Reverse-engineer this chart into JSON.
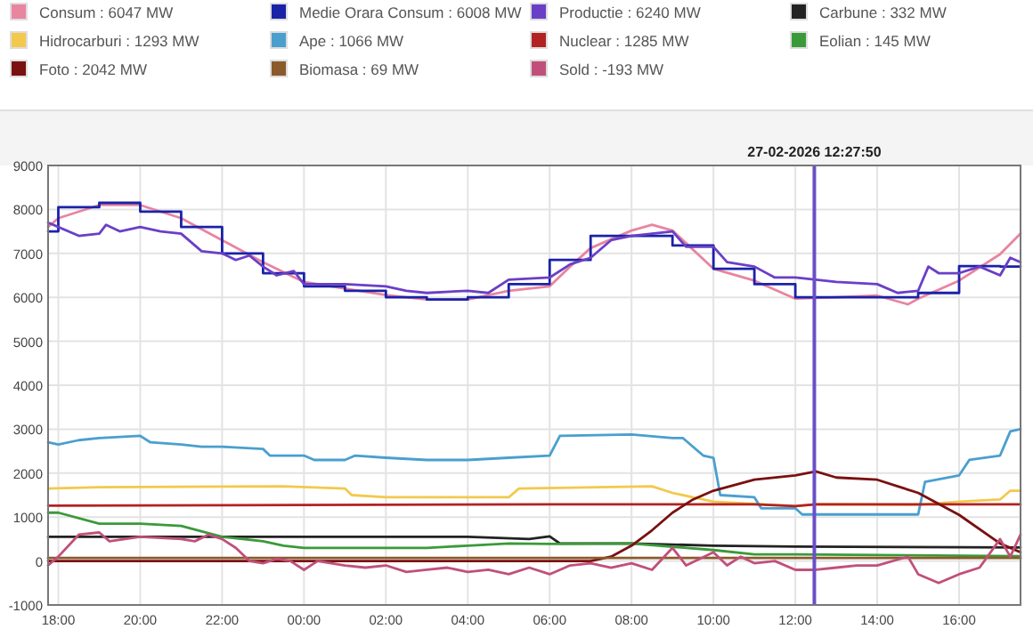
{
  "chart_data": {
    "type": "line",
    "legend": "top",
    "grid": true,
    "xlim": [
      "2026-02-26T17:45",
      "2026-02-27T17:30"
    ],
    "xticks": [
      {
        "value": "2026-02-26T18:00",
        "label": "18:00"
      },
      {
        "value": "2026-02-26T20:00",
        "label": "20:00"
      },
      {
        "value": "2026-02-26T22:00",
        "label": "22:00"
      },
      {
        "value": "2026-02-27T00:00",
        "label": "00:00"
      },
      {
        "value": "2026-02-27T02:00",
        "label": "02:00"
      },
      {
        "value": "2026-02-27T04:00",
        "label": "04:00"
      },
      {
        "value": "2026-02-27T06:00",
        "label": "06:00"
      },
      {
        "value": "2026-02-27T08:00",
        "label": "08:00"
      },
      {
        "value": "2026-02-27T10:00",
        "label": "10:00"
      },
      {
        "value": "2026-02-27T12:00",
        "label": "12:00"
      },
      {
        "value": "2026-02-27T14:00",
        "label": "14:00"
      },
      {
        "value": "2026-02-27T16:00",
        "label": "16:00"
      }
    ],
    "ylim": [
      -1000,
      9000
    ],
    "yticks": [
      -1000,
      0,
      1000,
      2000,
      3000,
      4000,
      5000,
      6000,
      7000,
      8000,
      9000
    ],
    "ref_lines": [
      {
        "axis": "x",
        "value": "2026-02-27T12:27:50",
        "label": "27-02-2026 12:27:50",
        "color": "#6a4fc7"
      }
    ],
    "series": [
      {
        "name": "Consum : 6047 MW",
        "color": "#e8859f",
        "x": [
          "2026-02-26T17:45",
          "2026-02-26T18:00",
          "2026-02-26T19:00",
          "2026-02-26T20:00",
          "2026-02-26T21:00",
          "2026-02-26T22:00",
          "2026-02-26T23:00",
          "2026-02-27T00:00",
          "2026-02-27T01:00",
          "2026-02-27T02:00",
          "2026-02-27T03:00",
          "2026-02-27T04:00",
          "2026-02-27T05:00",
          "2026-02-27T06:00",
          "2026-02-27T06:30",
          "2026-02-27T07:00",
          "2026-02-27T08:00",
          "2026-02-27T08:30",
          "2026-02-27T09:00",
          "2026-02-27T10:00",
          "2026-02-27T11:00",
          "2026-02-27T12:00",
          "2026-02-27T13:00",
          "2026-02-27T14:00",
          "2026-02-27T14:45",
          "2026-02-27T15:00",
          "2026-02-27T16:00",
          "2026-02-27T17:00",
          "2026-02-27T17:30"
        ],
        "values": [
          7600,
          7800,
          8100,
          8100,
          7800,
          7300,
          6800,
          6350,
          6200,
          6050,
          5950,
          5950,
          6150,
          6250,
          6700,
          7120,
          7520,
          7650,
          7520,
          6650,
          6380,
          5970,
          6000,
          6040,
          5840,
          5970,
          6380,
          6980,
          7450
        ]
      },
      {
        "name": "Medie Orara Consum : 6008 MW",
        "color": "#1a22a8",
        "type": "step",
        "x": [
          "2026-02-26T17:45",
          "2026-02-26T18:00",
          "2026-02-26T19:00",
          "2026-02-26T20:00",
          "2026-02-26T21:00",
          "2026-02-26T22:00",
          "2026-02-26T23:00",
          "2026-02-27T00:00",
          "2026-02-27T01:00",
          "2026-02-27T02:00",
          "2026-02-27T03:00",
          "2026-02-27T04:00",
          "2026-02-27T05:00",
          "2026-02-27T06:00",
          "2026-02-27T07:00",
          "2026-02-27T08:00",
          "2026-02-27T09:00",
          "2026-02-27T10:00",
          "2026-02-27T11:00",
          "2026-02-27T12:00",
          "2026-02-27T13:00",
          "2026-02-27T14:00",
          "2026-02-27T15:00",
          "2026-02-27T16:00",
          "2026-02-27T17:00",
          "2026-02-27T17:30"
        ],
        "values": [
          7500,
          8050,
          8150,
          7950,
          7600,
          7000,
          6550,
          6250,
          6150,
          6000,
          5950,
          6000,
          6300,
          6850,
          7400,
          7400,
          7180,
          6650,
          6300,
          6000,
          6000,
          6000,
          6100,
          6710,
          6700,
          6700
        ]
      },
      {
        "name": "Productie : 6240 MW",
        "color": "#6a3fc7",
        "x": [
          "2026-02-26T17:45",
          "2026-02-26T18:00",
          "2026-02-26T18:30",
          "2026-02-26T19:00",
          "2026-02-26T19:10",
          "2026-02-26T19:30",
          "2026-02-26T20:00",
          "2026-02-26T20:30",
          "2026-02-26T21:00",
          "2026-02-26T21:30",
          "2026-02-26T22:00",
          "2026-02-26T22:20",
          "2026-02-26T22:40",
          "2026-02-26T23:00",
          "2026-02-26T23:20",
          "2026-02-26T23:45",
          "2026-02-27T00:00",
          "2026-02-27T01:00",
          "2026-02-27T02:00",
          "2026-02-27T02:30",
          "2026-02-27T03:00",
          "2026-02-27T04:00",
          "2026-02-27T04:30",
          "2026-02-27T05:00",
          "2026-02-27T06:00",
          "2026-02-27T06:30",
          "2026-02-27T07:00",
          "2026-02-27T07:30",
          "2026-02-27T08:00",
          "2026-02-27T08:30",
          "2026-02-27T09:00",
          "2026-02-27T09:20",
          "2026-02-27T10:00",
          "2026-02-27T10:20",
          "2026-02-27T11:00",
          "2026-02-27T11:30",
          "2026-02-27T12:00",
          "2026-02-27T12:30",
          "2026-02-27T13:00",
          "2026-02-27T14:00",
          "2026-02-27T14:30",
          "2026-02-27T15:00",
          "2026-02-27T15:15",
          "2026-02-27T15:30",
          "2026-02-27T16:00",
          "2026-02-27T16:30",
          "2026-02-27T17:00",
          "2026-02-27T17:15",
          "2026-02-27T17:30"
        ],
        "values": [
          7700,
          7600,
          7400,
          7450,
          7650,
          7500,
          7600,
          7500,
          7450,
          7050,
          7000,
          6850,
          6950,
          6700,
          6500,
          6600,
          6300,
          6300,
          6250,
          6150,
          6100,
          6150,
          6100,
          6400,
          6450,
          6750,
          6900,
          7300,
          7400,
          7450,
          7500,
          7150,
          7150,
          6800,
          6700,
          6450,
          6450,
          6400,
          6350,
          6300,
          6100,
          6150,
          6700,
          6550,
          6550,
          6700,
          6500,
          6900,
          6800
        ]
      },
      {
        "name": "Carbune : 332 MW",
        "color": "#222222",
        "x": [
          "2026-02-26T17:45",
          "2026-02-26T20:00",
          "2026-02-27T00:00",
          "2026-02-27T04:00",
          "2026-02-27T05:30",
          "2026-02-27T06:00",
          "2026-02-27T06:15",
          "2026-02-27T08:00",
          "2026-02-27T10:00",
          "2026-02-27T12:00",
          "2026-02-27T17:30"
        ],
        "values": [
          550,
          550,
          550,
          550,
          500,
          560,
          400,
          400,
          350,
          330,
          310
        ]
      },
      {
        "name": "Hidrocarburi : 1293 MW",
        "color": "#f2c94c",
        "x": [
          "2026-02-26T17:45",
          "2026-02-26T19:00",
          "2026-02-26T23:30",
          "2026-02-27T01:00",
          "2026-02-27T01:10",
          "2026-02-27T02:00",
          "2026-02-27T05:00",
          "2026-02-27T05:15",
          "2026-02-27T08:30",
          "2026-02-27T09:00",
          "2026-02-27T10:00",
          "2026-02-27T11:00",
          "2026-02-27T12:00",
          "2026-02-27T12:30",
          "2026-02-27T15:00",
          "2026-02-27T16:00",
          "2026-02-27T17:00",
          "2026-02-27T17:15",
          "2026-02-27T17:30"
        ],
        "values": [
          1650,
          1680,
          1700,
          1650,
          1500,
          1450,
          1450,
          1650,
          1700,
          1550,
          1350,
          1300,
          1250,
          1290,
          1280,
          1350,
          1400,
          1600,
          1600
        ]
      },
      {
        "name": "Ape : 1066 MW",
        "color": "#4a9fcf",
        "x": [
          "2026-02-26T17:45",
          "2026-02-26T18:00",
          "2026-02-26T18:30",
          "2026-02-26T19:00",
          "2026-02-26T20:00",
          "2026-02-26T20:15",
          "2026-02-26T21:00",
          "2026-02-26T21:30",
          "2026-02-26T22:00",
          "2026-02-26T23:00",
          "2026-02-26T23:10",
          "2026-02-27T00:00",
          "2026-02-27T00:15",
          "2026-02-27T01:00",
          "2026-02-27T01:15",
          "2026-02-27T02:00",
          "2026-02-27T03:00",
          "2026-02-27T04:00",
          "2026-02-27T05:00",
          "2026-02-27T06:00",
          "2026-02-27T06:15",
          "2026-02-27T08:00",
          "2026-02-27T09:00",
          "2026-02-27T09:15",
          "2026-02-27T09:45",
          "2026-02-27T10:00",
          "2026-02-27T10:10",
          "2026-02-27T11:00",
          "2026-02-27T11:10",
          "2026-02-27T12:00",
          "2026-02-27T12:10",
          "2026-02-27T15:00",
          "2026-02-27T15:10",
          "2026-02-27T16:00",
          "2026-02-27T16:15",
          "2026-02-27T17:00",
          "2026-02-27T17:15",
          "2026-02-27T17:30"
        ],
        "values": [
          2700,
          2650,
          2750,
          2800,
          2850,
          2700,
          2650,
          2600,
          2600,
          2550,
          2400,
          2400,
          2300,
          2300,
          2400,
          2350,
          2300,
          2300,
          2350,
          2400,
          2850,
          2880,
          2800,
          2800,
          2400,
          2350,
          1500,
          1450,
          1200,
          1200,
          1060,
          1060,
          1800,
          1950,
          2300,
          2400,
          2950,
          3000
        ]
      },
      {
        "name": "Nuclear : 1285 MW",
        "color": "#b22222",
        "x": [
          "2026-02-26T17:45",
          "2026-02-27T06:00",
          "2026-02-27T11:00",
          "2026-02-27T12:00",
          "2026-02-27T12:30",
          "2026-02-27T17:30"
        ],
        "values": [
          1260,
          1290,
          1290,
          1250,
          1290,
          1290
        ]
      },
      {
        "name": "Eolian : 145 MW",
        "color": "#3a9a3a",
        "x": [
          "2026-02-26T17:45",
          "2026-02-26T18:00",
          "2026-02-26T19:00",
          "2026-02-26T20:00",
          "2026-02-26T21:00",
          "2026-02-26T22:00",
          "2026-02-26T23:00",
          "2026-02-26T23:30",
          "2026-02-27T00:00",
          "2026-02-27T02:00",
          "2026-02-27T03:00",
          "2026-02-27T04:00",
          "2026-02-27T05:00",
          "2026-02-27T06:00",
          "2026-02-27T08:00",
          "2026-02-27T10:00",
          "2026-02-27T11:00",
          "2026-02-27T12:00",
          "2026-02-27T17:30"
        ],
        "values": [
          1100,
          1100,
          850,
          850,
          800,
          550,
          450,
          350,
          300,
          300,
          300,
          350,
          400,
          390,
          400,
          250,
          150,
          150,
          110
        ]
      },
      {
        "name": "Foto : 2042 MW",
        "color": "#7a1010",
        "x": [
          "2026-02-26T17:45",
          "2026-02-27T07:00",
          "2026-02-27T07:30",
          "2026-02-27T08:00",
          "2026-02-27T08:30",
          "2026-02-27T09:00",
          "2026-02-27T09:30",
          "2026-02-27T10:00",
          "2026-02-27T11:00",
          "2026-02-27T12:00",
          "2026-02-27T12:30",
          "2026-02-27T13:00",
          "2026-02-27T14:00",
          "2026-02-27T14:30",
          "2026-02-27T15:00",
          "2026-02-27T16:00",
          "2026-02-27T17:00",
          "2026-02-27T17:30"
        ],
        "values": [
          0,
          0,
          100,
          350,
          700,
          1100,
          1400,
          1600,
          1850,
          1950,
          2040,
          1900,
          1850,
          1700,
          1550,
          1050,
          400,
          200
        ]
      },
      {
        "name": "Biomasa : 69 MW",
        "color": "#8b5a2b",
        "x": [
          "2026-02-26T17:45",
          "2026-02-27T17:30"
        ],
        "values": [
          70,
          70
        ]
      },
      {
        "name": "Sold : -193 MW",
        "color": "#c0507a",
        "x": [
          "2026-02-26T17:45",
          "2026-02-26T18:00",
          "2026-02-26T18:30",
          "2026-02-26T19:00",
          "2026-02-26T19:15",
          "2026-02-26T20:00",
          "2026-02-26T21:00",
          "2026-02-26T21:20",
          "2026-02-26T21:40",
          "2026-02-26T22:00",
          "2026-02-26T22:20",
          "2026-02-26T22:40",
          "2026-02-26T23:00",
          "2026-02-26T23:20",
          "2026-02-26T23:40",
          "2026-02-27T00:00",
          "2026-02-27T00:20",
          "2026-02-27T01:00",
          "2026-02-27T01:30",
          "2026-02-27T02:00",
          "2026-02-27T02:30",
          "2026-02-27T03:00",
          "2026-02-27T03:30",
          "2026-02-27T04:00",
          "2026-02-27T04:30",
          "2026-02-27T05:00",
          "2026-02-27T05:30",
          "2026-02-27T06:00",
          "2026-02-27T06:30",
          "2026-02-27T07:00",
          "2026-02-27T07:30",
          "2026-02-27T08:00",
          "2026-02-27T08:30",
          "2026-02-27T09:00",
          "2026-02-27T09:20",
          "2026-02-27T10:00",
          "2026-02-27T10:20",
          "2026-02-27T10:40",
          "2026-02-27T11:00",
          "2026-02-27T11:30",
          "2026-02-27T12:00",
          "2026-02-27T12:30",
          "2026-02-27T13:00",
          "2026-02-27T13:30",
          "2026-02-27T14:00",
          "2026-02-27T14:45",
          "2026-02-27T15:00",
          "2026-02-27T15:30",
          "2026-02-27T16:00",
          "2026-02-27T16:30",
          "2026-02-27T17:00",
          "2026-02-27T17:15",
          "2026-02-27T17:30"
        ],
        "values": [
          -100,
          100,
          600,
          650,
          450,
          550,
          500,
          450,
          600,
          500,
          300,
          0,
          -50,
          50,
          0,
          -200,
          0,
          -100,
          -150,
          -100,
          -250,
          -200,
          -150,
          -250,
          -200,
          -300,
          -150,
          -300,
          -100,
          -50,
          -150,
          -50,
          -200,
          300,
          -100,
          200,
          -100,
          100,
          -50,
          0,
          -200,
          -200,
          -150,
          -100,
          -100,
          100,
          -300,
          -500,
          -300,
          -150,
          500,
          100,
          600
        ]
      }
    ]
  }
}
